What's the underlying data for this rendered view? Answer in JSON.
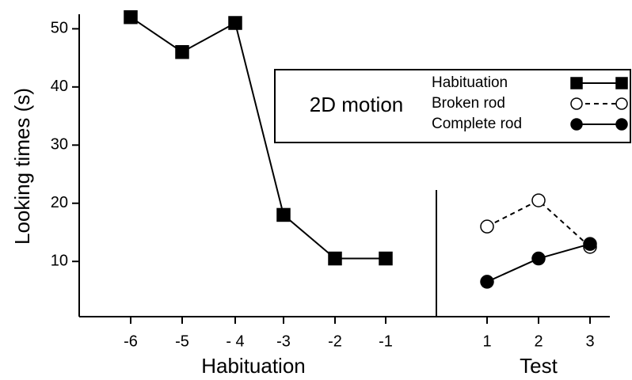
{
  "chart_data": {
    "type": "line",
    "ylabel": "Looking times (s)",
    "x_group_labels": [
      "Habituation",
      "Test"
    ],
    "categories": [
      "-6",
      "-5",
      "- 4",
      "-3",
      "-2",
      "-1",
      "1",
      "2",
      "3"
    ],
    "ylim": [
      0.5,
      52.5
    ],
    "yticks": [
      10,
      20,
      30,
      40,
      50
    ],
    "legend_title": "2D motion",
    "series": [
      {
        "name": "Habituation",
        "color": "#000000",
        "marker": "square",
        "filled": true,
        "line_style": "solid",
        "values": [
          52,
          46,
          51,
          18,
          10.5,
          10.5,
          null,
          null,
          null
        ]
      },
      {
        "name": "Broken rod",
        "color": "#000000",
        "marker": "circle",
        "filled": false,
        "line_style": "dashed",
        "values": [
          null,
          null,
          null,
          null,
          null,
          null,
          16,
          20.5,
          12.5
        ]
      },
      {
        "name": "Complete rod",
        "color": "#000000",
        "marker": "circle",
        "filled": true,
        "line_style": "solid",
        "values": [
          null,
          null,
          null,
          null,
          null,
          null,
          6.5,
          10.5,
          13
        ]
      }
    ]
  }
}
